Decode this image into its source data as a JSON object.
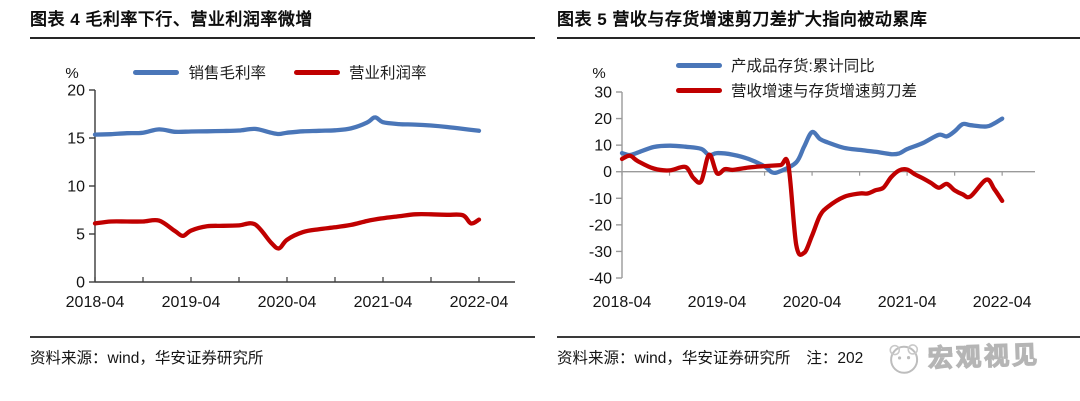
{
  "panels": [
    {
      "source": "资料来源：wind，华安证券研究所"
    },
    {
      "source": "资料来源：wind，华安证券研究所",
      "note": "注：202",
      "watermark_text": "宏观视见"
    }
  ],
  "chart_data": [
    {
      "type": "line",
      "title": "图表 4  毛利率下行、营业利润率微增",
      "unit": "%",
      "ylim": [
        0,
        20
      ],
      "yticks": [
        0,
        5,
        10,
        15,
        20
      ],
      "xticks": [
        "2018-04",
        "2019-04",
        "2020-04",
        "2021-04",
        "2022-04"
      ],
      "x_start": "2018-04",
      "x_end": "2022-04",
      "minor_xtick_every_months": 6,
      "grid": false,
      "zero_line": false,
      "legend_position": "top-center",
      "series": [
        {
          "name": "销售毛利率",
          "color": "#4a76b8",
          "points": [
            [
              "2018-04",
              15.35
            ],
            [
              "2018-06",
              15.4
            ],
            [
              "2018-08",
              15.5
            ],
            [
              "2018-10",
              15.55
            ],
            [
              "2018-12",
              15.9
            ],
            [
              "2019-02",
              15.65
            ],
            [
              "2019-04",
              15.68
            ],
            [
              "2019-06",
              15.7
            ],
            [
              "2019-08",
              15.73
            ],
            [
              "2019-10",
              15.78
            ],
            [
              "2019-12",
              15.95
            ],
            [
              "2020-02",
              15.55
            ],
            [
              "2020-03",
              15.42
            ],
            [
              "2020-04",
              15.55
            ],
            [
              "2020-06",
              15.7
            ],
            [
              "2020-08",
              15.75
            ],
            [
              "2020-10",
              15.8
            ],
            [
              "2020-12",
              16.0
            ],
            [
              "2021-02",
              16.6
            ],
            [
              "2021-03",
              17.15
            ],
            [
              "2021-04",
              16.65
            ],
            [
              "2021-06",
              16.45
            ],
            [
              "2021-08",
              16.4
            ],
            [
              "2021-10",
              16.3
            ],
            [
              "2021-12",
              16.15
            ],
            [
              "2022-02",
              15.95
            ],
            [
              "2022-04",
              15.75
            ]
          ]
        },
        {
          "name": "营业利润率",
          "color": "#c00000",
          "points": [
            [
              "2018-04",
              6.1
            ],
            [
              "2018-06",
              6.3
            ],
            [
              "2018-08",
              6.3
            ],
            [
              "2018-10",
              6.3
            ],
            [
              "2018-12",
              6.4
            ],
            [
              "2019-02",
              5.3
            ],
            [
              "2019-03",
              4.8
            ],
            [
              "2019-04",
              5.35
            ],
            [
              "2019-06",
              5.8
            ],
            [
              "2019-08",
              5.85
            ],
            [
              "2019-10",
              5.9
            ],
            [
              "2019-12",
              6.0
            ],
            [
              "2020-02",
              4.1
            ],
            [
              "2020-03",
              3.5
            ],
            [
              "2020-04",
              4.4
            ],
            [
              "2020-06",
              5.2
            ],
            [
              "2020-08",
              5.5
            ],
            [
              "2020-10",
              5.7
            ],
            [
              "2020-12",
              5.95
            ],
            [
              "2021-02",
              6.35
            ],
            [
              "2021-04",
              6.65
            ],
            [
              "2021-06",
              6.85
            ],
            [
              "2021-08",
              7.05
            ],
            [
              "2021-10",
              7.05
            ],
            [
              "2021-12",
              7.0
            ],
            [
              "2022-02",
              6.95
            ],
            [
              "2022-03",
              6.1
            ],
            [
              "2022-04",
              6.5
            ]
          ]
        }
      ]
    },
    {
      "type": "line",
      "title": "图表 5  营收与存货增速剪刀差扩大指向被动累库",
      "unit": "%",
      "ylim": [
        -40,
        30
      ],
      "yticks": [
        -40,
        -30,
        -20,
        -10,
        0,
        10,
        20,
        30
      ],
      "xticks": [
        "2018-04",
        "2019-04",
        "2020-04",
        "2021-04",
        "2022-04"
      ],
      "x_start": "2018-04",
      "x_end": "2022-04",
      "minor_xtick_every_months": 6,
      "grid": false,
      "zero_line": true,
      "legend_position": "top-center",
      "series": [
        {
          "name": "产成品存货:累计同比",
          "color": "#4a76b8",
          "points": [
            [
              "2018-04",
              7.0
            ],
            [
              "2018-05",
              6.3
            ],
            [
              "2018-06",
              7.2
            ],
            [
              "2018-08",
              9.3
            ],
            [
              "2018-10",
              9.8
            ],
            [
              "2018-12",
              9.4
            ],
            [
              "2019-02",
              8.6
            ],
            [
              "2019-03",
              6.2
            ],
            [
              "2019-04",
              7.0
            ],
            [
              "2019-06",
              6.4
            ],
            [
              "2019-08",
              4.8
            ],
            [
              "2019-10",
              2.0
            ],
            [
              "2019-11",
              -0.3
            ],
            [
              "2019-12",
              0.2
            ],
            [
              "2020-02",
              3.5
            ],
            [
              "2020-03",
              9.5
            ],
            [
              "2020-04",
              14.9
            ],
            [
              "2020-05",
              12.3
            ],
            [
              "2020-06",
              11.0
            ],
            [
              "2020-08",
              9.0
            ],
            [
              "2020-10",
              8.2
            ],
            [
              "2020-12",
              7.5
            ],
            [
              "2021-02",
              6.6
            ],
            [
              "2021-03",
              6.9
            ],
            [
              "2021-04",
              8.5
            ],
            [
              "2021-06",
              10.8
            ],
            [
              "2021-08",
              13.9
            ],
            [
              "2021-09",
              13.3
            ],
            [
              "2021-10",
              15.2
            ],
            [
              "2021-11",
              17.9
            ],
            [
              "2021-12",
              17.5
            ],
            [
              "2022-02",
              17.0
            ],
            [
              "2022-03",
              18.2
            ],
            [
              "2022-04",
              20.0
            ]
          ]
        },
        {
          "name": "营收增速与存货增速剪刀差",
          "color": "#c00000",
          "points": [
            [
              "2018-04",
              4.8
            ],
            [
              "2018-05",
              6.0
            ],
            [
              "2018-06",
              4.0
            ],
            [
              "2018-08",
              1.2
            ],
            [
              "2018-10",
              0.5
            ],
            [
              "2018-12",
              1.8
            ],
            [
              "2019-01",
              -2.3
            ],
            [
              "2019-02",
              -3.6
            ],
            [
              "2019-03",
              6.4
            ],
            [
              "2019-04",
              -0.6
            ],
            [
              "2019-05",
              1.0
            ],
            [
              "2019-06",
              0.7
            ],
            [
              "2019-08",
              1.6
            ],
            [
              "2019-10",
              2.1
            ],
            [
              "2019-12",
              2.5
            ],
            [
              "2020-01",
              2.6
            ],
            [
              "2020-02",
              -27.5
            ],
            [
              "2020-03",
              -30.5
            ],
            [
              "2020-04",
              -24.0
            ],
            [
              "2020-05",
              -16.5
            ],
            [
              "2020-06",
              -13.2
            ],
            [
              "2020-08",
              -9.5
            ],
            [
              "2020-10",
              -8.2
            ],
            [
              "2020-11",
              -8.2
            ],
            [
              "2020-12",
              -7.0
            ],
            [
              "2021-01",
              -6.0
            ],
            [
              "2021-02",
              -2.0
            ],
            [
              "2021-03",
              0.5
            ],
            [
              "2021-04",
              0.8
            ],
            [
              "2021-05",
              -1.0
            ],
            [
              "2021-06",
              -2.5
            ],
            [
              "2021-07",
              -4.2
            ],
            [
              "2021-08",
              -6.0
            ],
            [
              "2021-09",
              -4.6
            ],
            [
              "2021-10",
              -7.0
            ],
            [
              "2021-11",
              -8.5
            ],
            [
              "2021-12",
              -9.3
            ],
            [
              "2022-02",
              -3.0
            ],
            [
              "2022-03",
              -6.5
            ],
            [
              "2022-04",
              -11.0
            ]
          ]
        }
      ]
    }
  ]
}
